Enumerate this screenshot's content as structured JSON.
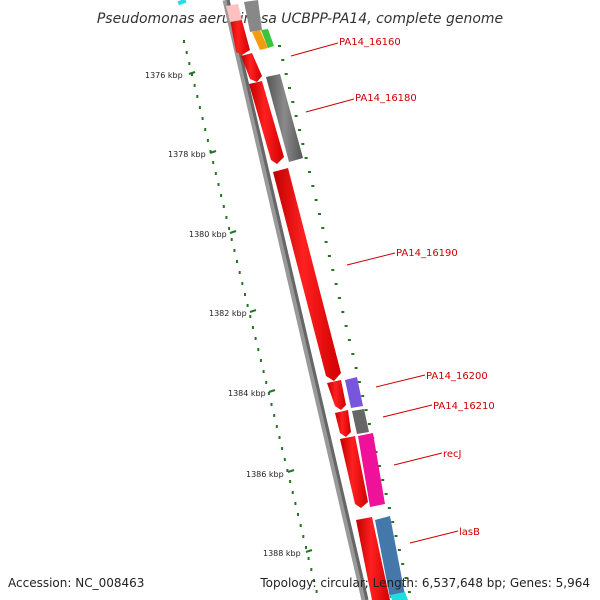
{
  "title": "Pseudomonas aeruginosa UCBPP-PA14, complete genome",
  "accession": "Accession: NC_008463",
  "summary": "Topology: circular; Length: 6,537,648 bp; Genes: 5,964",
  "colors": {
    "backbone": "#808080",
    "forward_cds": "#ff0000",
    "tick": "#227722",
    "label": "#cc0000"
  },
  "ruler": {
    "unit": "kbp",
    "ticks": [
      {
        "label": "1376 kbp"
      },
      {
        "label": "1378 kbp"
      },
      {
        "label": "1380 kbp"
      },
      {
        "label": "1382 kbp"
      },
      {
        "label": "1384 kbp"
      },
      {
        "label": "1386 kbp"
      },
      {
        "label": "1388 kbp"
      }
    ]
  },
  "gene_labels": [
    {
      "name": "PA14_16160"
    },
    {
      "name": "PA14_16180"
    },
    {
      "name": "PA14_16190"
    },
    {
      "name": "PA14_16200"
    },
    {
      "name": "PA14_16210"
    },
    {
      "name": "recJ"
    },
    {
      "name": "lasB"
    }
  ],
  "tracks": {
    "cds_strand_color": "#ff0000",
    "features": [
      {
        "name": "PA14_16160",
        "color": "#e8e8e8"
      },
      {
        "name": "PA14_16180",
        "color": "#666666"
      },
      {
        "name": "PA14_16190",
        "color": "#ff0000"
      },
      {
        "name": "PA14_16200",
        "color": "#7755dd"
      },
      {
        "name": "PA14_16210",
        "color": "#666666"
      },
      {
        "name": "recJ",
        "color": "#ee1199"
      },
      {
        "name": "lasB",
        "color": "#4477aa"
      }
    ]
  }
}
